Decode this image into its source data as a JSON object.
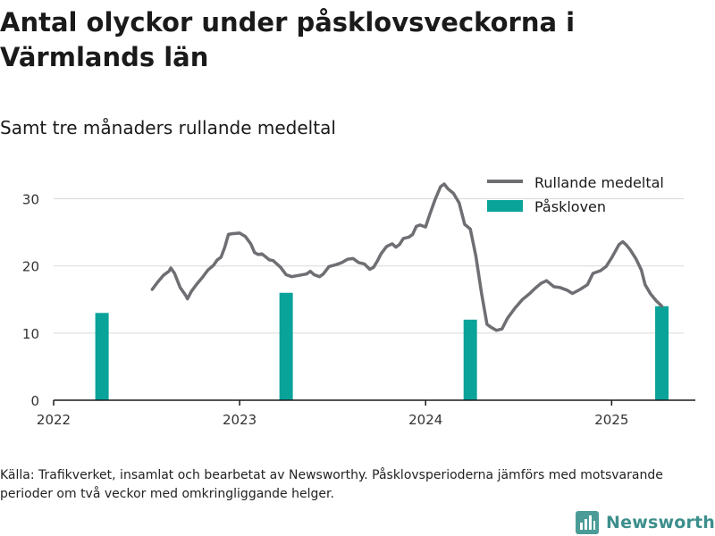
{
  "title": "Antal olyckor under påsklovsveckorna i Värmlands län",
  "subtitle": "Samt tre månaders rullande medeltal",
  "source": "Källa: Trafikverket, insamlat och bearbetat av Newsworthy. Påsklovsperioderna jämförs med motsvarande perioder om två veckor med omkringliggande helger.",
  "brand": {
    "name": "Newsworthy",
    "icon": "bar-chart-logo-icon"
  },
  "colors": {
    "line": "#6e6e73",
    "bar": "#0aa39a",
    "grid": "#d9d9d9",
    "axis": "#1a1a1a"
  },
  "chart_data": {
    "type": "bar+line",
    "x_axis": {
      "min": 2022.0,
      "max": 2025.45,
      "ticks": [
        2022,
        2023,
        2024,
        2025
      ]
    },
    "y_axis": {
      "min": 0,
      "max": 33,
      "ticks": [
        0,
        10,
        20,
        30
      ]
    },
    "grid": {
      "horizontal": true
    },
    "legend": {
      "position": "top-right",
      "items": [
        {
          "label": "Rullande medeltal",
          "kind": "line"
        },
        {
          "label": "Påskloven",
          "kind": "bar"
        }
      ]
    },
    "bars": {
      "name": "Påskloven",
      "points": [
        {
          "x": 2022.26,
          "y": 13
        },
        {
          "x": 2023.25,
          "y": 16
        },
        {
          "x": 2024.24,
          "y": 12
        },
        {
          "x": 2025.27,
          "y": 14
        }
      ]
    },
    "line": {
      "name": "Rullande medeltal",
      "points": [
        [
          2022.53,
          16.5
        ],
        [
          2022.56,
          17.6
        ],
        [
          2022.59,
          18.6
        ],
        [
          2022.62,
          19.2
        ],
        [
          2022.63,
          19.7
        ],
        [
          2022.65,
          18.9
        ],
        [
          2022.68,
          16.8
        ],
        [
          2022.71,
          15.6
        ],
        [
          2022.72,
          15.1
        ],
        [
          2022.74,
          16.2
        ],
        [
          2022.77,
          17.3
        ],
        [
          2022.8,
          18.3
        ],
        [
          2022.83,
          19.4
        ],
        [
          2022.86,
          20.1
        ],
        [
          2022.88,
          20.9
        ],
        [
          2022.9,
          21.3
        ],
        [
          2022.92,
          22.8
        ],
        [
          2022.94,
          24.7
        ],
        [
          2022.96,
          24.8
        ],
        [
          2023.0,
          24.9
        ],
        [
          2023.03,
          24.4
        ],
        [
          2023.06,
          23.3
        ],
        [
          2023.08,
          22.0
        ],
        [
          2023.1,
          21.7
        ],
        [
          2023.12,
          21.8
        ],
        [
          2023.16,
          20.9
        ],
        [
          2023.18,
          20.8
        ],
        [
          2023.22,
          19.8
        ],
        [
          2023.25,
          18.7
        ],
        [
          2023.28,
          18.4
        ],
        [
          2023.32,
          18.6
        ],
        [
          2023.36,
          18.8
        ],
        [
          2023.38,
          19.2
        ],
        [
          2023.4,
          18.7
        ],
        [
          2023.43,
          18.4
        ],
        [
          2023.45,
          18.8
        ],
        [
          2023.48,
          19.9
        ],
        [
          2023.52,
          20.2
        ],
        [
          2023.55,
          20.5
        ],
        [
          2023.58,
          21.0
        ],
        [
          2023.61,
          21.1
        ],
        [
          2023.64,
          20.5
        ],
        [
          2023.67,
          20.3
        ],
        [
          2023.7,
          19.5
        ],
        [
          2023.72,
          19.8
        ],
        [
          2023.74,
          20.7
        ],
        [
          2023.76,
          21.8
        ],
        [
          2023.79,
          22.9
        ],
        [
          2023.82,
          23.3
        ],
        [
          2023.84,
          22.8
        ],
        [
          2023.86,
          23.2
        ],
        [
          2023.88,
          24.1
        ],
        [
          2023.91,
          24.3
        ],
        [
          2023.93,
          24.7
        ],
        [
          2023.95,
          25.9
        ],
        [
          2023.97,
          26.1
        ],
        [
          2024.0,
          25.8
        ],
        [
          2024.02,
          27.5
        ],
        [
          2024.05,
          29.8
        ],
        [
          2024.08,
          31.8
        ],
        [
          2024.1,
          32.2
        ],
        [
          2024.12,
          31.5
        ],
        [
          2024.15,
          30.8
        ],
        [
          2024.18,
          29.4
        ],
        [
          2024.21,
          26.2
        ],
        [
          2024.24,
          25.5
        ],
        [
          2024.27,
          21.5
        ],
        [
          2024.3,
          16.0
        ],
        [
          2024.33,
          11.3
        ],
        [
          2024.35,
          10.9
        ],
        [
          2024.38,
          10.4
        ],
        [
          2024.41,
          10.6
        ],
        [
          2024.44,
          12.2
        ],
        [
          2024.48,
          13.7
        ],
        [
          2024.52,
          15.0
        ],
        [
          2024.56,
          15.9
        ],
        [
          2024.59,
          16.7
        ],
        [
          2024.62,
          17.4
        ],
        [
          2024.65,
          17.8
        ],
        [
          2024.69,
          16.9
        ],
        [
          2024.72,
          16.8
        ],
        [
          2024.76,
          16.4
        ],
        [
          2024.79,
          15.9
        ],
        [
          2024.83,
          16.5
        ],
        [
          2024.87,
          17.2
        ],
        [
          2024.9,
          18.9
        ],
        [
          2024.94,
          19.3
        ],
        [
          2024.97,
          19.9
        ],
        [
          2025.0,
          21.2
        ],
        [
          2025.02,
          22.2
        ],
        [
          2025.04,
          23.2
        ],
        [
          2025.06,
          23.6
        ],
        [
          2025.08,
          23.1
        ],
        [
          2025.1,
          22.4
        ],
        [
          2025.13,
          21.1
        ],
        [
          2025.16,
          19.4
        ],
        [
          2025.18,
          17.2
        ],
        [
          2025.21,
          15.8
        ],
        [
          2025.24,
          14.8
        ],
        [
          2025.27,
          14.0
        ]
      ]
    }
  }
}
